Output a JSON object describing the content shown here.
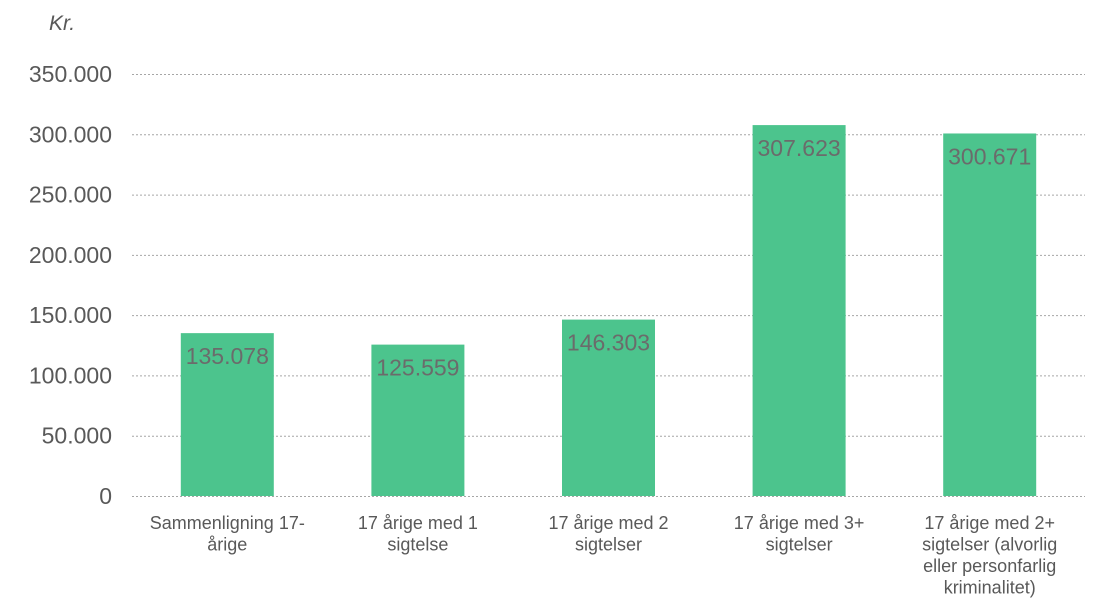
{
  "chart_data": {
    "type": "bar",
    "unit_label": "Kr.",
    "categories": [
      [
        "Sammenligning 17-",
        "årige"
      ],
      [
        "17 årige med 1",
        "sigtelse"
      ],
      [
        "17 årige med 2",
        "sigtelser"
      ],
      [
        "17 årige med 3+",
        "sigtelser"
      ],
      [
        "17 årige med 2+",
        "sigtelser (alvorlig",
        "eller personfarlig",
        "kriminalitet)"
      ]
    ],
    "values": [
      135078,
      125559,
      146303,
      307623,
      300671
    ],
    "data_labels": [
      "135.078",
      "125.559",
      "146.303",
      "307.623",
      "300.671"
    ],
    "ylim": [
      0,
      350000
    ],
    "yticks": [
      0,
      50000,
      100000,
      150000,
      200000,
      250000,
      300000,
      350000
    ],
    "ytick_labels": [
      "0",
      "50.000",
      "100.000",
      "150.000",
      "200.000",
      "250.000",
      "300.000",
      "350.000"
    ],
    "bar_color": "#4cc48d",
    "grid": true,
    "legend": "none"
  }
}
